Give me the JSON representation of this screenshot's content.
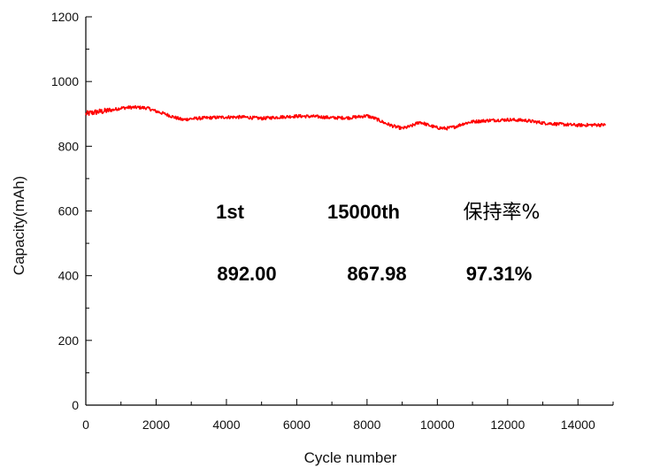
{
  "chart_data": {
    "type": "line",
    "title": "",
    "xlabel": "Cycle number",
    "ylabel": "Capacity(mAh)",
    "xlim": [
      0,
      15000
    ],
    "ylim": [
      0,
      1200
    ],
    "x_ticks": [
      0,
      2000,
      4000,
      6000,
      8000,
      10000,
      12000,
      14000
    ],
    "y_ticks": [
      0,
      200,
      400,
      600,
      800,
      1000,
      1200
    ],
    "grid": false,
    "legend": "none",
    "series": [
      {
        "color": "#ff0000",
        "x": [
          0,
          250,
          500,
          750,
          1000,
          1250,
          1500,
          1750,
          2000,
          2250,
          2500,
          2750,
          3000,
          3500,
          4000,
          4500,
          5000,
          5500,
          6000,
          6500,
          7000,
          7500,
          8000,
          8250,
          8500,
          8750,
          9000,
          9250,
          9500,
          9750,
          10000,
          10250,
          10500,
          10750,
          11000,
          11500,
          12000,
          12500,
          13000,
          13500,
          14000,
          14500,
          14800
        ],
        "y": [
          900,
          905,
          908,
          912,
          918,
          920,
          920,
          918,
          908,
          900,
          890,
          882,
          885,
          888,
          890,
          890,
          886,
          890,
          893,
          892,
          888,
          888,
          894,
          885,
          872,
          862,
          855,
          862,
          875,
          865,
          857,
          855,
          860,
          870,
          876,
          880,
          882,
          880,
          872,
          868,
          865,
          866,
          866
        ]
      }
    ]
  },
  "annotations": {
    "row1": [
      "1st",
      "15000th",
      "保持率%"
    ],
    "row2": [
      "892.00",
      "867.98",
      "97.31%"
    ]
  }
}
